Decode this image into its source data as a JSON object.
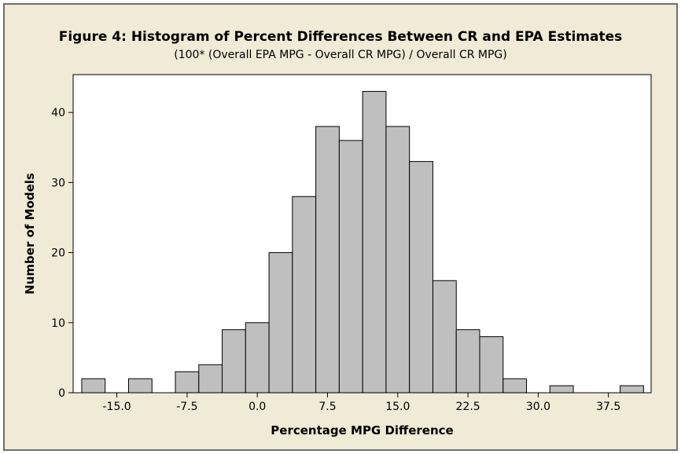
{
  "chart_data": {
    "type": "bar",
    "title": "Figure 4: Histogram of Percent Differences Between CR and EPA Estimates",
    "subtitle": "(100* (Overall EPA MPG - Overall CR MPG) / Overall CR MPG)",
    "xlabel": "Percentage MPG Difference",
    "ylabel": "Number of Models",
    "bins": [
      {
        "start": -18.75,
        "end": -16.25,
        "count": 2
      },
      {
        "start": -16.25,
        "end": -13.75,
        "count": 0
      },
      {
        "start": -13.75,
        "end": -11.25,
        "count": 2
      },
      {
        "start": -11.25,
        "end": -8.75,
        "count": 0
      },
      {
        "start": -8.75,
        "end": -6.25,
        "count": 3
      },
      {
        "start": -6.25,
        "end": -3.75,
        "count": 4
      },
      {
        "start": -3.75,
        "end": -1.25,
        "count": 9
      },
      {
        "start": -1.25,
        "end": 1.25,
        "count": 10
      },
      {
        "start": 1.25,
        "end": 3.75,
        "count": 20
      },
      {
        "start": 3.75,
        "end": 6.25,
        "count": 28
      },
      {
        "start": 6.25,
        "end": 8.75,
        "count": 38
      },
      {
        "start": 8.75,
        "end": 11.25,
        "count": 36
      },
      {
        "start": 11.25,
        "end": 13.75,
        "count": 43
      },
      {
        "start": 13.75,
        "end": 16.25,
        "count": 38
      },
      {
        "start": 16.25,
        "end": 18.75,
        "count": 33
      },
      {
        "start": 18.75,
        "end": 21.25,
        "count": 16
      },
      {
        "start": 21.25,
        "end": 23.75,
        "count": 9
      },
      {
        "start": 23.75,
        "end": 26.25,
        "count": 8
      },
      {
        "start": 26.25,
        "end": 28.75,
        "count": 2
      },
      {
        "start": 28.75,
        "end": 31.25,
        "count": 0
      },
      {
        "start": 31.25,
        "end": 33.75,
        "count": 1
      },
      {
        "start": 33.75,
        "end": 36.25,
        "count": 0
      },
      {
        "start": 36.25,
        "end": 38.75,
        "count": 0
      },
      {
        "start": 38.75,
        "end": 41.25,
        "count": 1
      }
    ],
    "x_ticks": [
      -15.0,
      -7.5,
      0.0,
      7.5,
      15.0,
      22.5,
      30.0,
      37.5
    ],
    "x_tick_labels": [
      "-15.0",
      "-7.5",
      "0.0",
      "7.5",
      "15.0",
      "22.5",
      "30.0",
      "37.5"
    ],
    "y_ticks": [
      0,
      10,
      20,
      30,
      40
    ],
    "y_tick_labels": [
      "0",
      "10",
      "20",
      "30",
      "40"
    ],
    "xlim": [
      -19.67,
      42.06
    ],
    "ylim": [
      0,
      45.4
    ],
    "grid": false,
    "colors": {
      "bar_fill": "#bfbfbf",
      "bar_stroke": "#000000",
      "plot_background": "#ffffff",
      "frame_background": "#f0ead6"
    }
  }
}
